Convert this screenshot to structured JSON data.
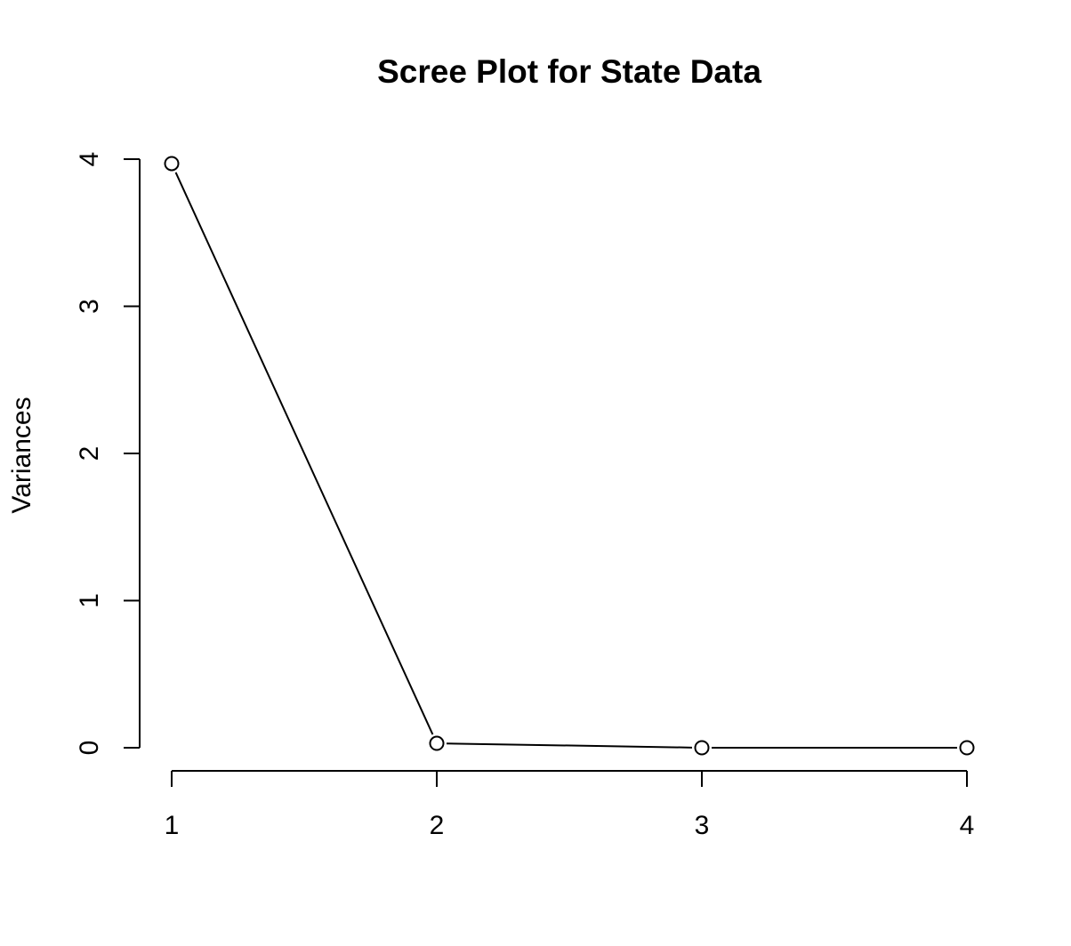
{
  "chart_data": {
    "type": "line",
    "title": "Scree Plot for State Data",
    "xlabel": "",
    "ylabel": "Variances",
    "x": [
      1,
      2,
      3,
      4
    ],
    "x_tick_labels": [
      "1",
      "2",
      "3",
      "4"
    ],
    "y_ticks": [
      0,
      1,
      2,
      3,
      4
    ],
    "y_tick_labels": [
      "0",
      "1",
      "2",
      "3",
      "4"
    ],
    "ylim": [
      0,
      4
    ],
    "xlim": [
      1,
      4
    ],
    "series": [
      {
        "values": [
          3.97,
          0.03,
          0.0,
          0.0
        ],
        "marker": "open-circle",
        "line": "solid",
        "color": "#000000"
      }
    ],
    "grid": false,
    "legend": "none"
  }
}
